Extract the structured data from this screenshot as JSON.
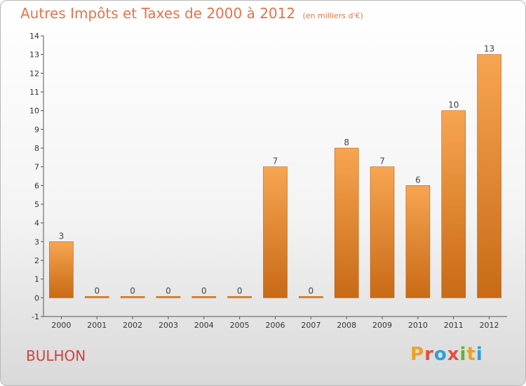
{
  "header": {
    "title": "Autres Impôts et Taxes de 2000 à 2012",
    "unit": "(en milliers d'€)"
  },
  "footer": {
    "commune": "BULHON",
    "brand_letters": [
      "P",
      "r",
      "o",
      "x",
      "i",
      "t",
      "i"
    ],
    "brand_colors": [
      "#f0a020",
      "#e34f3f",
      "#2d9fd8",
      "#e34f3f",
      "#5cb531",
      "#f0a020",
      "#2d9fd8"
    ]
  },
  "colors": {
    "bar_top": "#f7a551",
    "bar_bottom": "#c86a16",
    "bar_stroke": "#b86013",
    "title": "#e8734a",
    "commune": "#d33f3f"
  },
  "chart_data": {
    "type": "bar",
    "title": "Autres Impôts et Taxes de 2000 à 2012",
    "subtitle": "(en milliers d'€)",
    "xlabel": "",
    "ylabel": "",
    "categories": [
      "2000",
      "2001",
      "2002",
      "2003",
      "2004",
      "2005",
      "2006",
      "2007",
      "2008",
      "2009",
      "2010",
      "2011",
      "2012"
    ],
    "values": [
      3,
      0,
      0,
      0,
      0,
      0,
      7,
      0,
      8,
      7,
      6,
      10,
      13
    ],
    "value_labels": [
      "3",
      "0",
      "0",
      "0",
      "0",
      "0",
      "7",
      "0",
      "8",
      "7",
      "6",
      "10",
      "13"
    ],
    "ylim": [
      -1,
      14
    ],
    "y_ticks": [
      -1,
      0,
      1,
      2,
      3,
      4,
      5,
      6,
      7,
      8,
      9,
      10,
      11,
      12,
      13,
      14
    ],
    "grid": false,
    "legend": "none"
  }
}
